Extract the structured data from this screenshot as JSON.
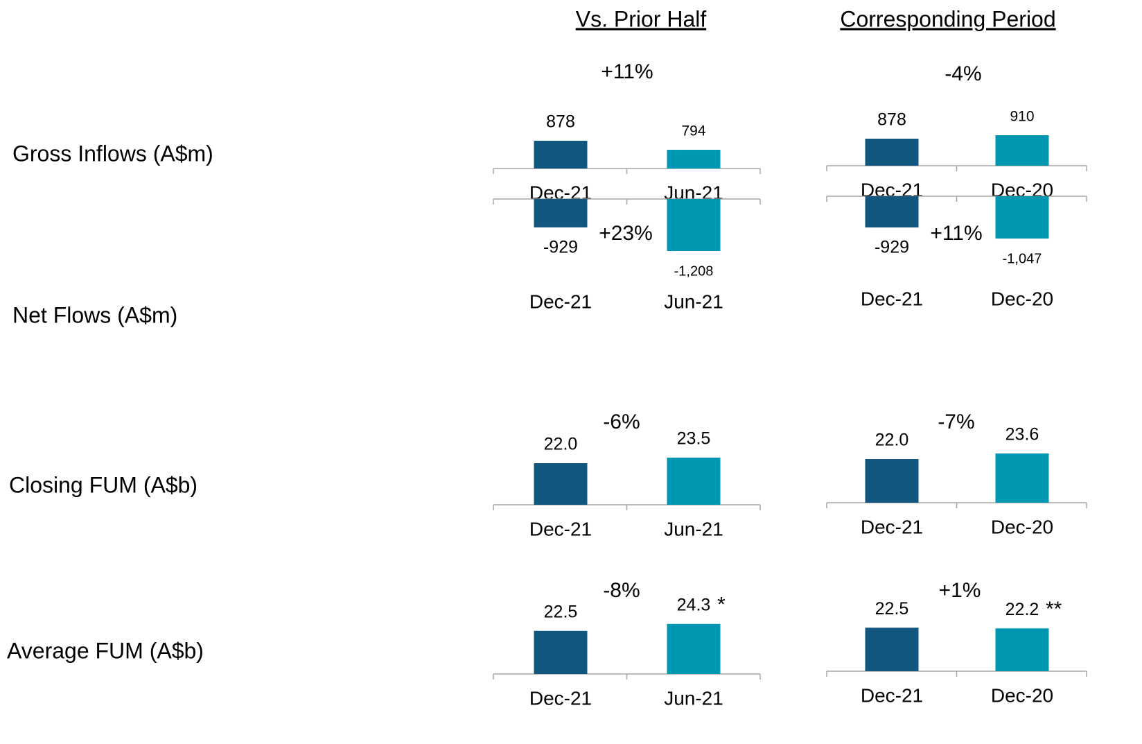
{
  "column_headers": [
    "Vs. Prior Half",
    "Corresponding Period"
  ],
  "row_labels": [
    "Gross Inflows (A$m)",
    "Net Flows (A$m)",
    "Closing FUM (A$b)",
    "Average FUM (A$b)"
  ],
  "chart_data": [
    {
      "type": "bar",
      "change": "+11%",
      "categories": [
        "Dec-21",
        "Jun-21"
      ],
      "values": [
        878,
        794
      ],
      "colors": [
        "#12577f",
        "#0097b2"
      ],
      "ylim": [
        620,
        1265
      ]
    },
    {
      "type": "bar",
      "change": "-4%",
      "categories": [
        "Dec-21",
        "Dec-20"
      ],
      "values": [
        878,
        910
      ],
      "colors": [
        "#12577f",
        "#0097b2"
      ],
      "ylim": [
        628,
        1269
      ]
    },
    {
      "type": "bar",
      "change": "+23%",
      "categories": [
        "Dec-21",
        "Jun-21"
      ],
      "values": [
        -929,
        -1208
      ],
      "value_labels": [
        "-929",
        "-1,208"
      ],
      "colors": [
        "#12577f",
        "#0097b2"
      ],
      "ylim": [
        -1413,
        -593
      ]
    },
    {
      "type": "bar",
      "change": "+11%",
      "categories": [
        "Dec-21",
        "Dec-20"
      ],
      "values": [
        -929,
        -1047
      ],
      "value_labels": [
        "-929",
        "-1,047"
      ],
      "colors": [
        "#12577f",
        "#0097b2"
      ],
      "ylim": [
        -1334,
        -597
      ]
    },
    {
      "type": "bar",
      "change": "-6%",
      "categories": [
        "Dec-21",
        "Jun-21"
      ],
      "values": [
        22.0,
        23.5
      ],
      "value_labels": [
        "22.0",
        "23.5"
      ],
      "colors": [
        "#12577f",
        "#0097b2"
      ],
      "ylim": [
        10.75,
        29.5
      ]
    },
    {
      "type": "bar",
      "change": "-7%",
      "categories": [
        "Dec-21",
        "Dec-20"
      ],
      "values": [
        22.0,
        23.6
      ],
      "value_labels": [
        "22.0",
        "23.6"
      ],
      "colors": [
        "#12577f",
        "#0097b2"
      ],
      "ylim": [
        9.4,
        29.4
      ]
    },
    {
      "type": "bar",
      "change": "-8%",
      "categories": [
        "Dec-21",
        "Jun-21"
      ],
      "values": [
        22.5,
        24.3
      ],
      "value_labels": [
        "22.5",
        "24.3"
      ],
      "value_notes": [
        null,
        "*"
      ],
      "colors": [
        "#12577f",
        "#0097b2"
      ],
      "ylim": [
        11.3,
        29.3
      ]
    },
    {
      "type": "bar",
      "change": "+1%",
      "categories": [
        "Dec-21",
        "Dec-20"
      ],
      "values": [
        22.5,
        22.2
      ],
      "value_labels": [
        "22.5",
        "22.2"
      ],
      "value_notes": [
        null,
        "**"
      ],
      "colors": [
        "#12577f",
        "#0097b2"
      ],
      "ylim": [
        3.5,
        33.8
      ]
    }
  ]
}
